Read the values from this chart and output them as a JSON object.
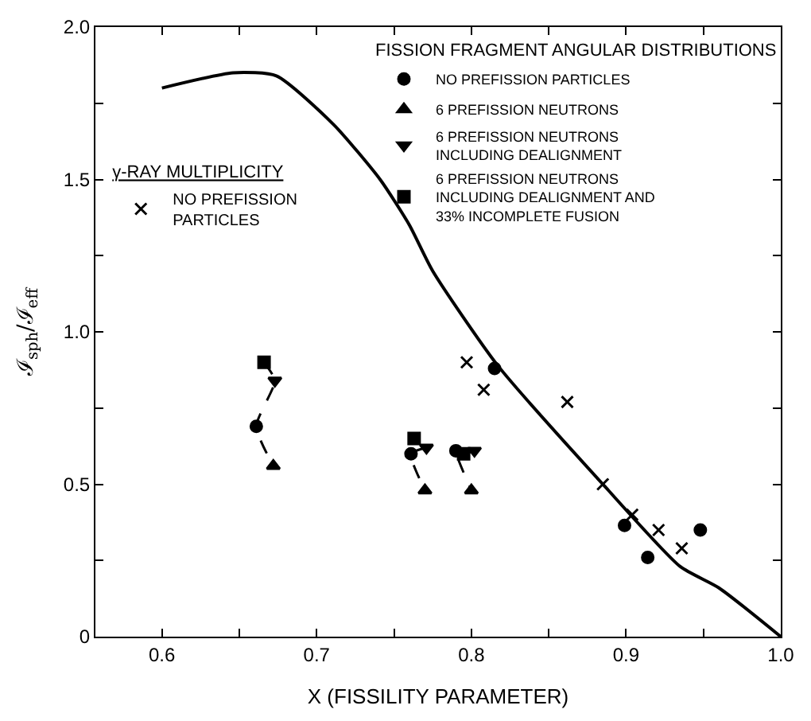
{
  "chart_data": {
    "type": "scatter",
    "xlabel": "X (FISSILITY PARAMETER)",
    "ylabel": "ℐ$_{sph}$/ℐ$_{eff}$",
    "legend_title": "FISSION FRAGMENT ANGULAR DISTRIBUTIONS",
    "xlim": [
      0.557,
      1.0
    ],
    "ylim": [
      0,
      2.0
    ],
    "xticks": [
      0.6,
      {
        "value": 0.65,
        "label": null
      },
      0.7,
      {
        "value": 0.75,
        "label": null
      },
      0.8,
      {
        "value": 0.85,
        "label": null
      },
      0.9,
      {
        "value": 0.95,
        "label": null
      },
      {
        "value": 1.0,
        "label": "1.0"
      }
    ],
    "yticks": [
      0,
      {
        "value": 0.25,
        "label": null
      },
      0.5,
      {
        "value": 0.75,
        "label": null
      },
      {
        "value": 1.0,
        "label": "1.0"
      },
      {
        "value": 1.25,
        "label": null
      },
      1.5,
      {
        "value": 1.75,
        "label": null
      },
      {
        "value": 2.0,
        "label": "2.0"
      }
    ],
    "legend": "top",
    "annotations": [
      "γ-RAY MULTIPLICITY"
    ],
    "series": [
      {
        "type": "line",
        "color": "#000000",
        "line_style": "solid",
        "marker": "none",
        "x": [
          0.6,
          0.646,
          0.674,
          0.711,
          0.741,
          0.76,
          0.775,
          0.817,
          0.885,
          0.935,
          0.96,
          1.0
        ],
        "values": [
          1.8,
          1.85,
          1.84,
          1.68,
          1.5,
          1.35,
          1.2,
          0.89,
          0.5,
          0.23,
          0.16,
          0
        ]
      },
      {
        "type": "line",
        "color": "#000000",
        "line_style": "dashed",
        "marker": "none",
        "x": [
          0.666,
          0.673,
          0.661,
          0.672
        ],
        "values": [
          0.9,
          0.84,
          0.69,
          0.56
        ]
      },
      {
        "type": "line",
        "color": "#000000",
        "line_style": "dashed",
        "marker": "none",
        "x": [
          0.771,
          0.761,
          0.77
        ],
        "values": [
          0.62,
          0.6,
          0.48
        ]
      },
      {
        "type": "line",
        "color": "#000000",
        "line_style": "dashed",
        "marker": "none",
        "x": [
          0.802,
          0.795,
          0.79,
          0.8
        ],
        "values": [
          0.61,
          0.6,
          0.61,
          0.48
        ]
      },
      {
        "name": "NO PREFISSION PARTICLES",
        "color": "#000000",
        "marker": "circle",
        "x": [
          0.661,
          0.761,
          0.79,
          0.815,
          0.899,
          0.914,
          0.948
        ],
        "values": [
          0.69,
          0.6,
          0.61,
          0.88,
          0.365,
          0.26,
          0.35
        ]
      },
      {
        "name": "6 PREFISSION NEUTRONS",
        "color": "#000000",
        "marker": "triangle",
        "x": [
          0.672,
          0.77,
          0.8
        ],
        "values": [
          0.56,
          0.48,
          0.48
        ]
      },
      {
        "name": "6 PREFISSION NEUTRONS\nINCLUDING DEALIGNMENT",
        "color": "#000000",
        "marker": "triangle-down",
        "x": [
          0.673,
          0.771,
          0.802
        ],
        "values": [
          0.84,
          0.62,
          0.61
        ]
      },
      {
        "name": "6 PREFISSION NEUTRONS\nINCLUDING DEALIGNMENT AND\n33% INCOMPLETE FUSION",
        "color": "#000000",
        "marker": "square",
        "x": [
          0.666,
          0.763,
          0.795
        ],
        "values": [
          0.9,
          0.65,
          0.6
        ]
      },
      {
        "name": "NO PREFISSION\nPARTICLES",
        "color": "#000000",
        "marker": "cross",
        "x": [
          0.797,
          0.808,
          0.862,
          0.885,
          0.904,
          0.921,
          0.936
        ],
        "values": [
          0.9,
          0.81,
          0.77,
          0.5,
          0.4,
          0.35,
          0.29
        ]
      }
    ]
  }
}
